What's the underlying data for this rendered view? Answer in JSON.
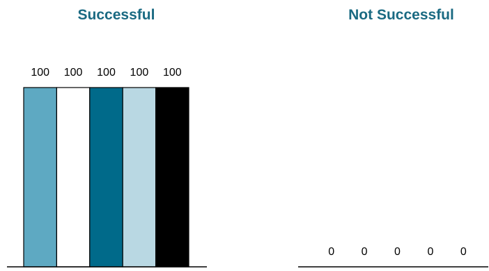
{
  "chart_data": {
    "type": "bar",
    "ylim": [
      0,
      100
    ],
    "title_color": "#1a6a82",
    "axis_color": "#000000",
    "bar_stroke": "#000000",
    "panels": [
      {
        "title": "Successful",
        "series": [
          {
            "value": 100,
            "label": "100",
            "color": "#5ea9c2"
          },
          {
            "value": 100,
            "label": "100",
            "color": "#ffffff"
          },
          {
            "value": 100,
            "label": "100",
            "color": "#006a8a"
          },
          {
            "value": 100,
            "label": "100",
            "color": "#b9d8e3"
          },
          {
            "value": 100,
            "label": "100",
            "color": "#000000"
          }
        ]
      },
      {
        "title": "Not Successful",
        "series": [
          {
            "value": 0,
            "label": "0",
            "color": "#5ea9c2"
          },
          {
            "value": 0,
            "label": "0",
            "color": "#ffffff"
          },
          {
            "value": 0,
            "label": "0",
            "color": "#006a8a"
          },
          {
            "value": 0,
            "label": "0",
            "color": "#b9d8e3"
          },
          {
            "value": 0,
            "label": "0",
            "color": "#000000"
          }
        ]
      }
    ]
  }
}
